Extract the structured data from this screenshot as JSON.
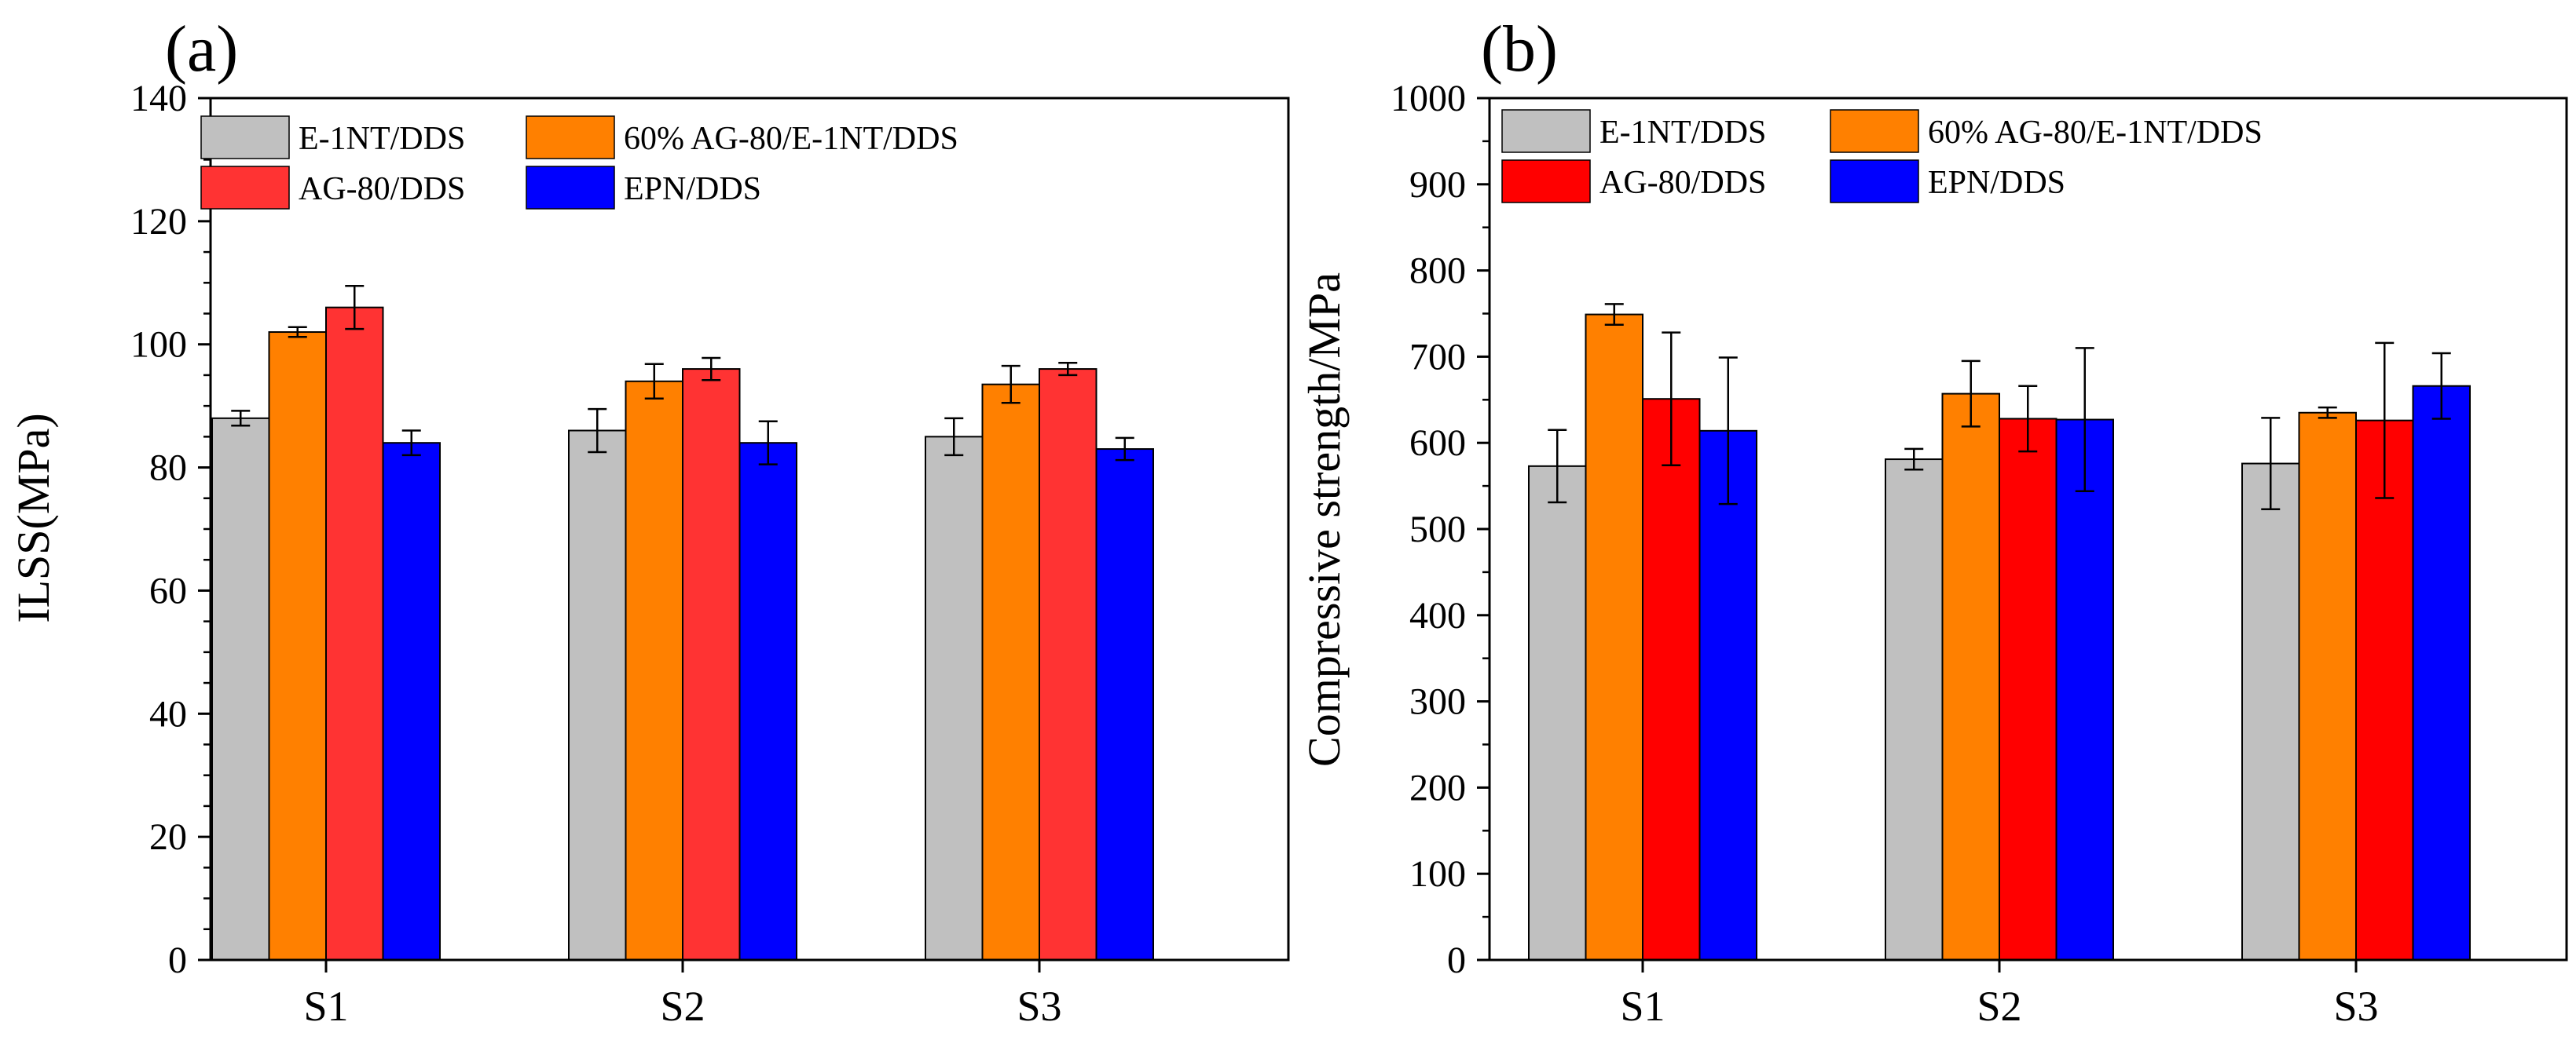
{
  "colors": {
    "E-1NT/DDS": "#c0c0c0",
    "60% AG-80/E-1NT/DDS": "#ff8000",
    "AG-80/DDS": "#ff3333",
    "EPN/DDS": "#0000ff",
    "AG-80/DDS (b)": "#ff0000"
  },
  "chart_data": [
    {
      "type": "bar",
      "panel_label": "(a)",
      "title": "",
      "xlabel": "",
      "ylabel": "ILSS(MPa)",
      "ylim": [
        0,
        140
      ],
      "yticks": [
        "0",
        "20",
        "40",
        "60",
        "80",
        "100",
        "120",
        "140"
      ],
      "categories": [
        "S1",
        "S2",
        "S3"
      ],
      "legend_position": "top-left",
      "series": [
        {
          "name": "E-1NT/DDS",
          "values": [
            88,
            86,
            85
          ],
          "errors": [
            1.2,
            3.5,
            3.0
          ]
        },
        {
          "name": "60% AG-80/E-1NT/DDS",
          "values": [
            102,
            94,
            93.5
          ],
          "errors": [
            0.8,
            2.8,
            3.0
          ]
        },
        {
          "name": "AG-80/DDS",
          "values": [
            106,
            96,
            96
          ],
          "errors": [
            3.5,
            1.8,
            1.0
          ]
        },
        {
          "name": "EPN/DDS",
          "values": [
            84,
            84,
            83
          ],
          "errors": [
            2.0,
            3.5,
            1.8
          ]
        }
      ]
    },
    {
      "type": "bar",
      "panel_label": "(b)",
      "title": "",
      "xlabel": "",
      "ylabel": "Compressive strength/MPa",
      "ylim": [
        0,
        1000
      ],
      "yticks": [
        "0",
        "100",
        "200",
        "300",
        "400",
        "500",
        "600",
        "700",
        "800",
        "900",
        "1000"
      ],
      "categories": [
        "S1",
        "S2",
        "S3"
      ],
      "legend_position": "top-left",
      "series": [
        {
          "name": "E-1NT/DDS",
          "values": [
            573,
            581,
            576
          ],
          "errors": [
            42,
            12,
            53
          ]
        },
        {
          "name": "60% AG-80/E-1NT/DDS",
          "values": [
            749,
            657,
            635
          ],
          "errors": [
            12,
            38,
            6
          ]
        },
        {
          "name": "AG-80/DDS",
          "values": [
            651,
            628,
            626
          ],
          "errors": [
            77,
            38,
            90
          ]
        },
        {
          "name": "EPN/DDS",
          "values": [
            614,
            627,
            666
          ],
          "errors": [
            85,
            83,
            38
          ]
        }
      ]
    }
  ]
}
